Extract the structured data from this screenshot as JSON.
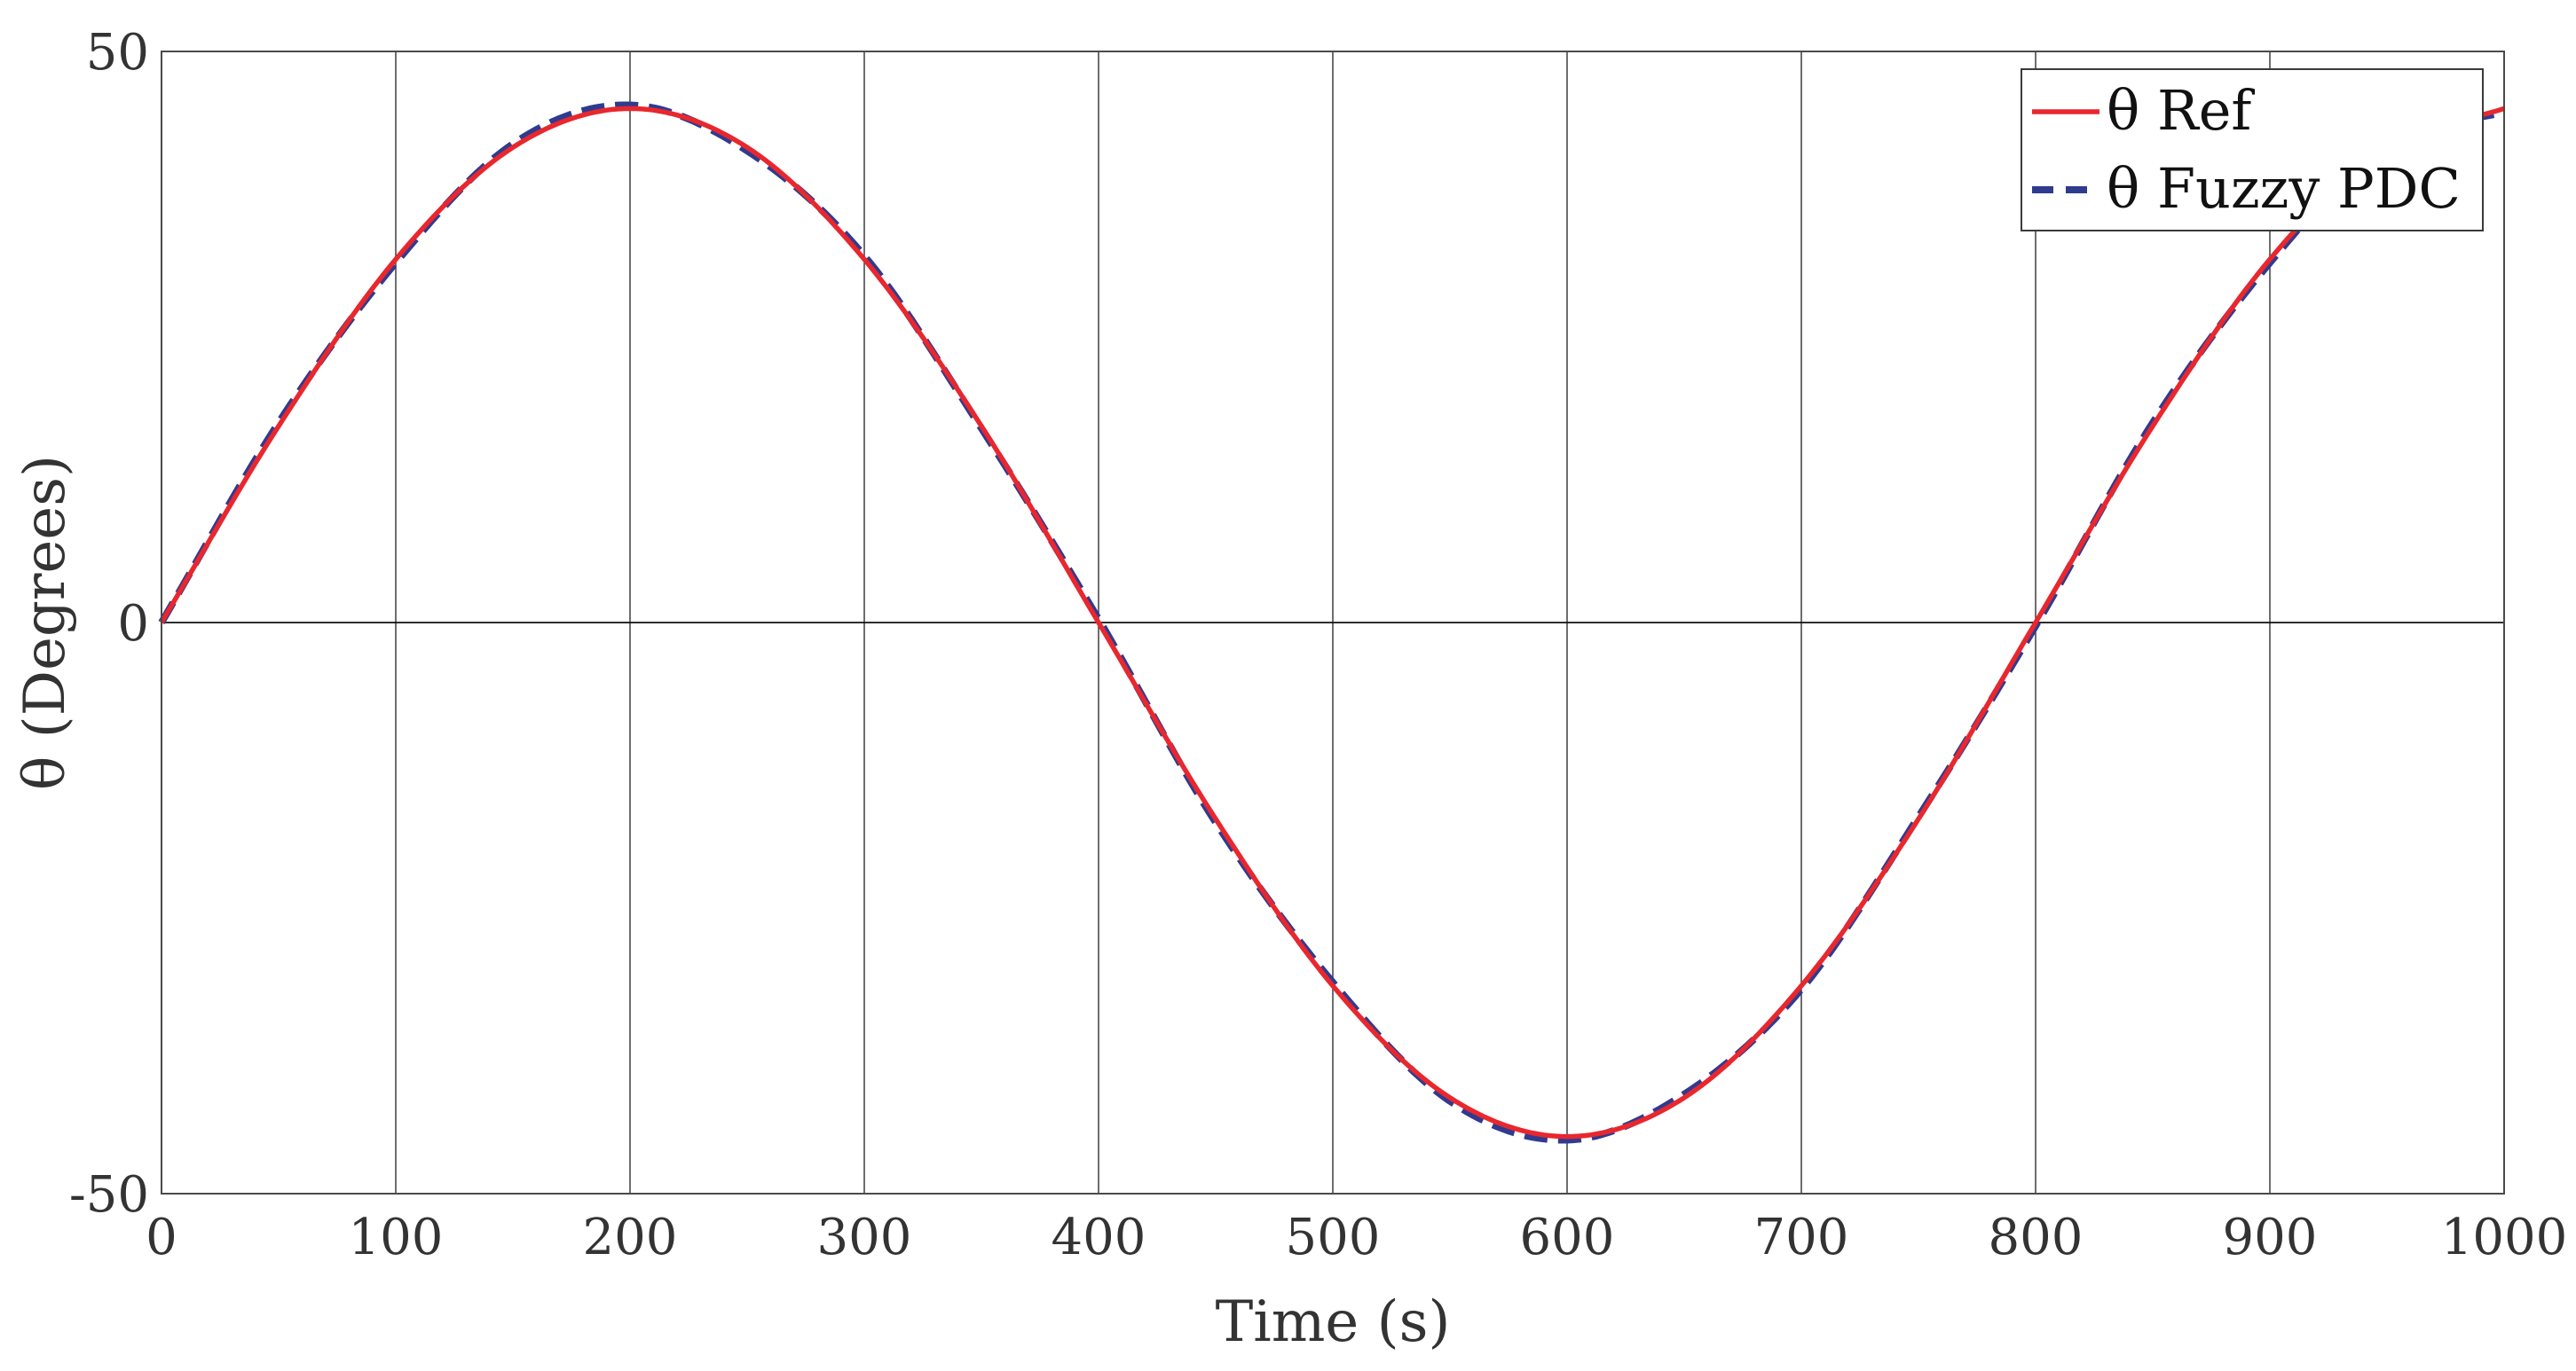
{
  "chart_data": {
    "type": "line",
    "xlabel": "Time (s)",
    "ylabel": "θ (Degrees)",
    "xlim": [
      0,
      1000
    ],
    "ylim": [
      -50,
      50
    ],
    "x_ticks": [
      "0",
      "100",
      "200",
      "300",
      "400",
      "500",
      "600",
      "700",
      "800",
      "900",
      "1000"
    ],
    "y_ticks": [
      "-50",
      "0",
      "50"
    ],
    "grid": true,
    "legend_position": "top-right",
    "colors": {
      "ref": "#e8272e",
      "fuzzy": "#2f3b8f"
    },
    "series": [
      {
        "name": "θ Ref",
        "style": "solid",
        "x": [
          0,
          50,
          100,
          150,
          200,
          250,
          300,
          350,
          400,
          450,
          500,
          550,
          600,
          650,
          700,
          750,
          800,
          850,
          900,
          950,
          1000
        ],
        "values": [
          0,
          17.2,
          31.8,
          41.6,
          45,
          41.6,
          31.8,
          17.2,
          0,
          -17.2,
          -31.8,
          -41.6,
          -45,
          -41.6,
          -31.8,
          -17.2,
          0,
          17.2,
          31.8,
          41.6,
          45
        ]
      },
      {
        "name": "θ Fuzzy PDC",
        "style": "dashed",
        "x": [
          0,
          50,
          100,
          150,
          200,
          250,
          300,
          350,
          400,
          450,
          500,
          550,
          600,
          650,
          700,
          750,
          800,
          850,
          900,
          950,
          1000
        ],
        "values": [
          0,
          17.5,
          31.5,
          41.9,
          45.3,
          41.3,
          32.1,
          17.0,
          0.3,
          -17.5,
          -31.5,
          -41.9,
          -45.3,
          -41.3,
          -32.1,
          -17.0,
          -0.3,
          17.5,
          31.5,
          41.9,
          44.7
        ]
      }
    ]
  }
}
